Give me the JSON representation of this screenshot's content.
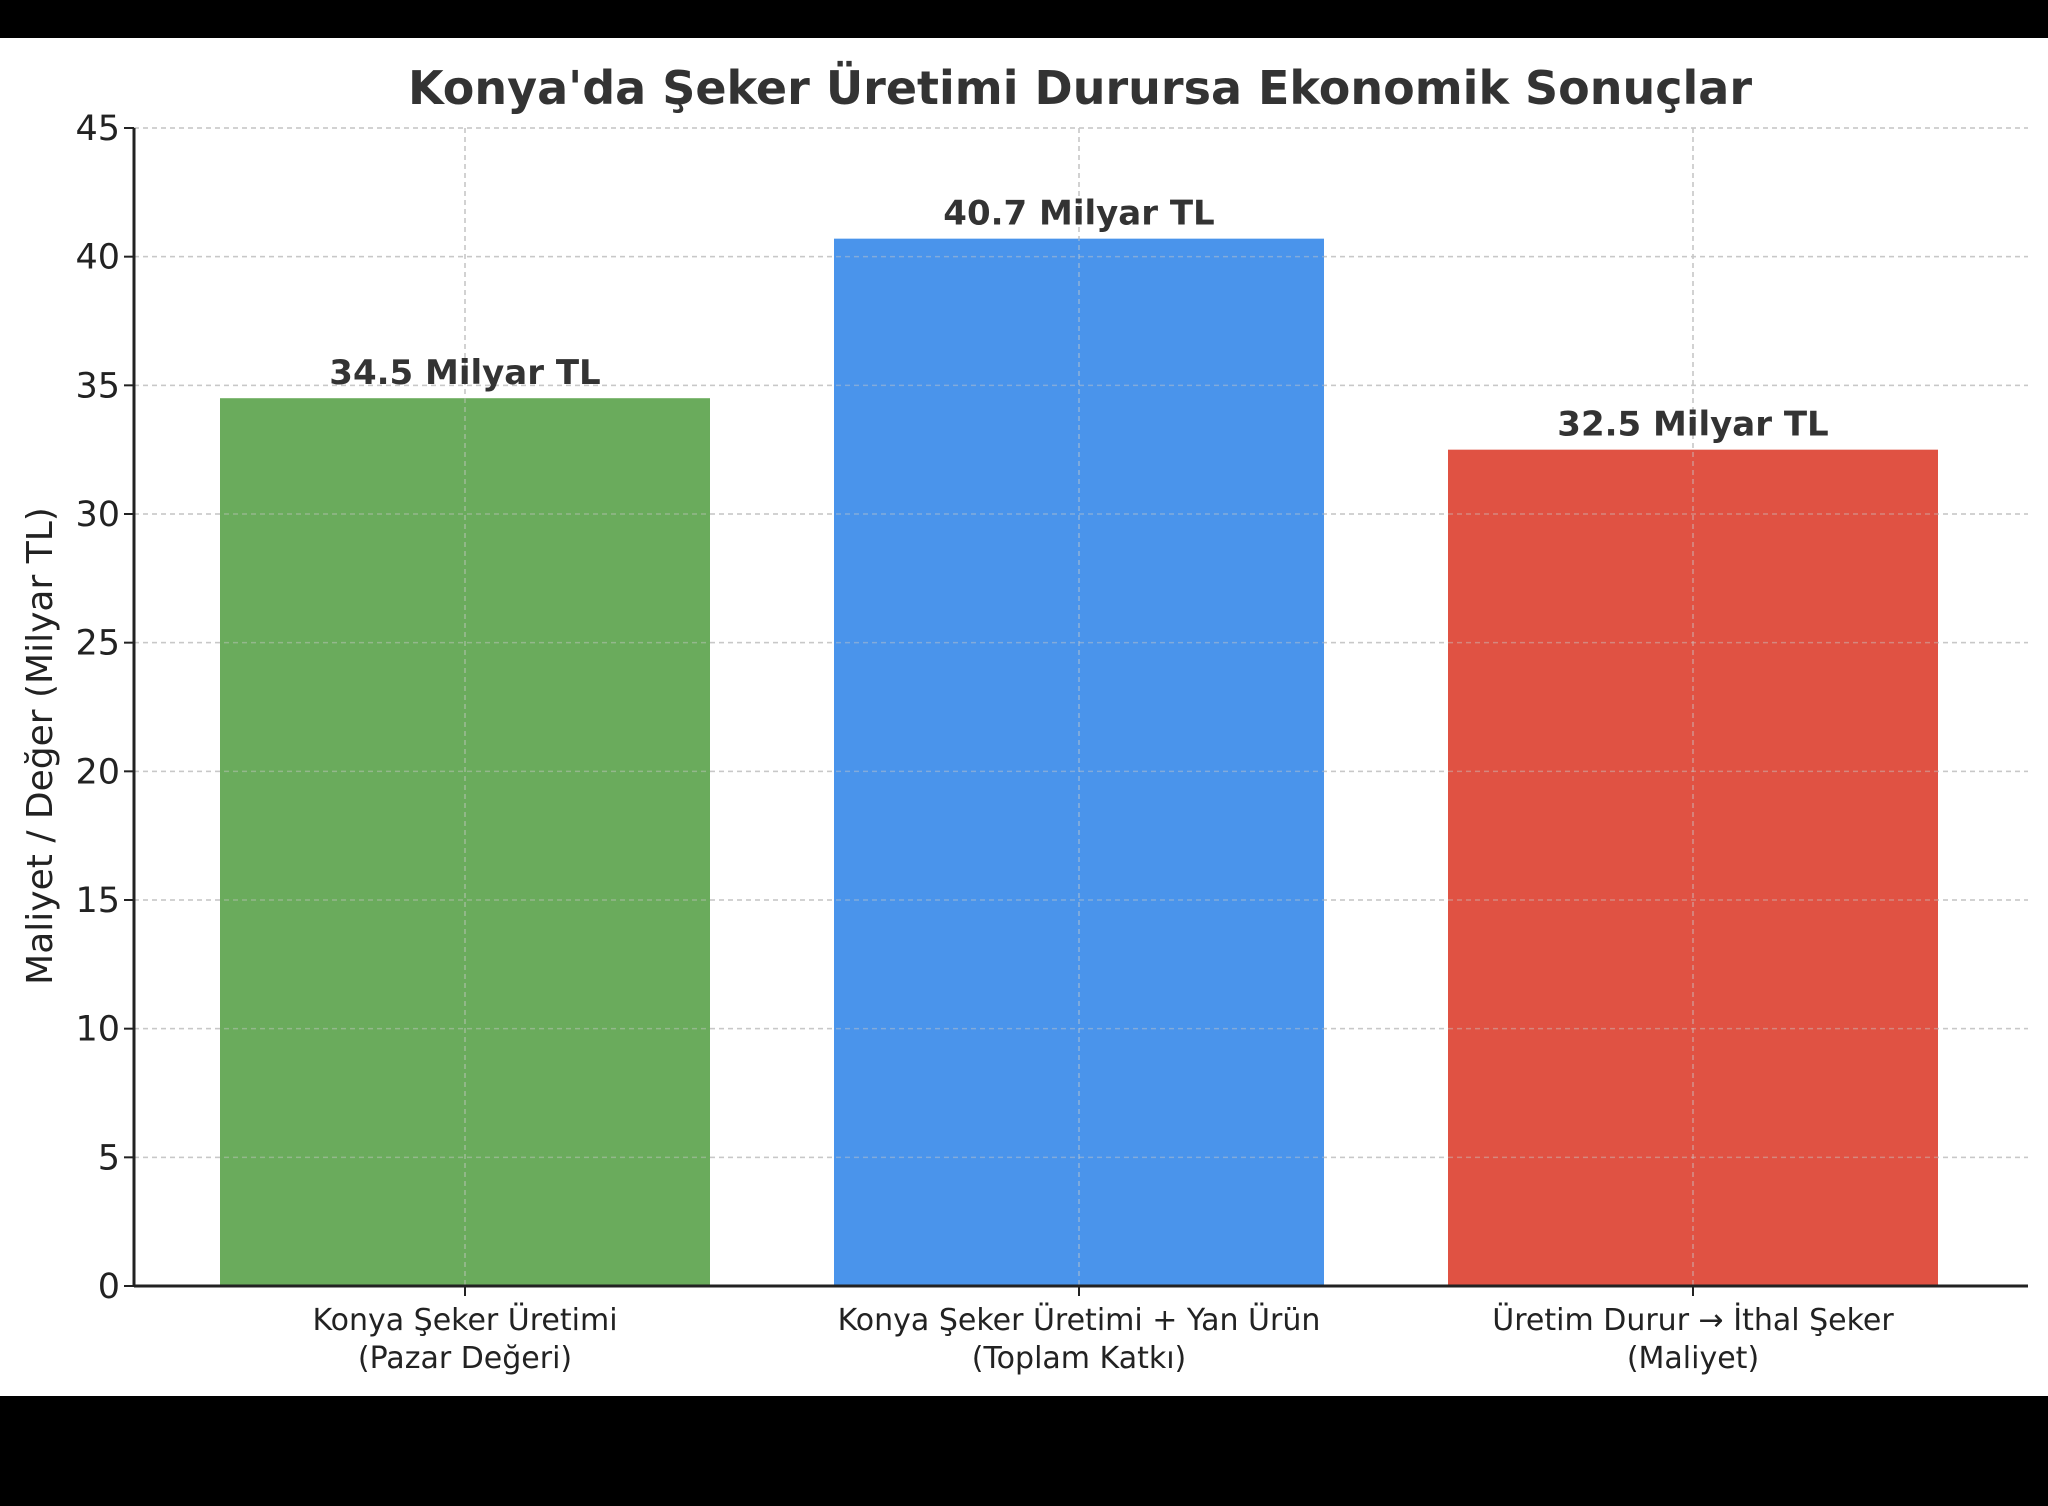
{
  "chart_data": {
    "type": "bar",
    "title": "Konya'da Şeker Üretimi Durursa Ekonomik Sonuçlar",
    "xlabel": "",
    "ylabel": "Maliyet / Değer (Milyar TL)",
    "ylim": [
      0,
      45
    ],
    "yticks": [
      "0",
      "5",
      "10",
      "15",
      "20",
      "25",
      "30",
      "35",
      "40",
      "45"
    ],
    "grid": true,
    "categories": [
      {
        "line1": "Konya Şeker Üretimi",
        "line2": "(Pazar Değeri)"
      },
      {
        "line1": "Konya Şeker Üretimi + Yan Ürün",
        "line2": "(Toplam Katkı)"
      },
      {
        "line1": "Üretim Durur → İthal Şeker",
        "line2": "(Maliyet)"
      }
    ],
    "values": [
      34.5,
      40.7,
      32.5
    ],
    "value_labels": [
      "34.5 Milyar TL",
      "40.7 Milyar TL",
      "32.5 Milyar TL"
    ],
    "colors": [
      "#6aab5c",
      "#4a94eb",
      "#e05243"
    ]
  }
}
